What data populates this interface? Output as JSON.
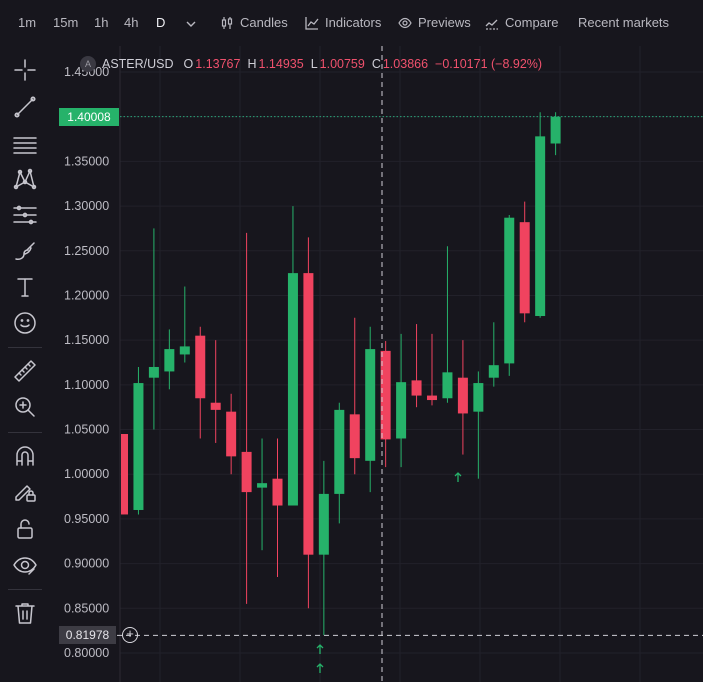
{
  "toolbar": {
    "timeframes": [
      "1m",
      "15m",
      "1h",
      "4h",
      "D"
    ],
    "active_timeframe": "D",
    "candles_label": "Candles",
    "indicators_label": "Indicators",
    "previews_label": "Previews",
    "compare_label": "Compare",
    "recent_markets_label": "Recent markets"
  },
  "drawing_tools": [
    "crosshair-icon",
    "trend-line-icon",
    "horizontal-lines-icon",
    "pattern-icon",
    "fib-levels-icon",
    "brush-icon",
    "text-icon",
    "emoji-icon",
    "ruler-icon",
    "zoom-in-icon",
    "magnet-icon",
    "lock-drawings-icon",
    "unlock-icon",
    "eye-icon",
    "trash-icon"
  ],
  "legend": {
    "symbol_icon_text": "A",
    "symbol": "ASTER/USD",
    "open_key": "O",
    "open": "1.13767",
    "high_key": "H",
    "high": "1.14935",
    "low_key": "L",
    "low": "1.00759",
    "close_key": "C",
    "close": "1.03866",
    "change": "−0.10171 (−8.92%)"
  },
  "last_price": "1.40008",
  "cursor_price": "0.81978",
  "colors": {
    "up": "#26b26a",
    "down": "#f0435f",
    "last_price_line": "#2aa37a",
    "grid": "#22212a",
    "axis_text": "#bdbcc4",
    "background": "#17161d"
  },
  "chart_data": {
    "type": "candlestick",
    "symbol": "ASTER/USD",
    "ylim": [
      0.78,
      1.47
    ],
    "y_ticks": [
      "1.45000",
      "1.40000",
      "1.35000",
      "1.30000",
      "1.25000",
      "1.20000",
      "1.15000",
      "1.10000",
      "1.05000",
      "1.00000",
      "0.95000",
      "0.90000",
      "0.85000",
      "0.80000"
    ],
    "candles": [
      {
        "o": 1.045,
        "h": 1.045,
        "l": 0.955,
        "c": 0.955
      },
      {
        "o": 0.96,
        "h": 1.12,
        "l": 0.955,
        "c": 1.102
      },
      {
        "o": 1.108,
        "h": 1.275,
        "l": 1.05,
        "c": 1.12
      },
      {
        "o": 1.115,
        "h": 1.162,
        "l": 1.095,
        "c": 1.14
      },
      {
        "o": 1.134,
        "h": 1.21,
        "l": 1.125,
        "c": 1.143
      },
      {
        "o": 1.155,
        "h": 1.165,
        "l": 1.04,
        "c": 1.085
      },
      {
        "o": 1.08,
        "h": 1.15,
        "l": 1.035,
        "c": 1.072
      },
      {
        "o": 1.07,
        "h": 1.09,
        "l": 1.0,
        "c": 1.02
      },
      {
        "o": 1.025,
        "h": 1.27,
        "l": 0.855,
        "c": 0.98
      },
      {
        "o": 0.985,
        "h": 1.04,
        "l": 0.915,
        "c": 0.99
      },
      {
        "o": 0.995,
        "h": 1.04,
        "l": 0.885,
        "c": 0.965
      },
      {
        "o": 0.965,
        "h": 1.3,
        "l": 0.965,
        "c": 1.225
      },
      {
        "o": 1.225,
        "h": 1.265,
        "l": 0.85,
        "c": 0.91
      },
      {
        "o": 0.91,
        "h": 1.015,
        "l": 0.82,
        "c": 0.978
      },
      {
        "o": 0.978,
        "h": 1.08,
        "l": 0.945,
        "c": 1.072
      },
      {
        "o": 1.067,
        "h": 1.175,
        "l": 1.0,
        "c": 1.018
      },
      {
        "o": 1.015,
        "h": 1.165,
        "l": 0.98,
        "c": 1.14
      },
      {
        "o": 1.138,
        "h": 1.149,
        "l": 1.008,
        "c": 1.039
      },
      {
        "o": 1.04,
        "h": 1.157,
        "l": 1.008,
        "c": 1.103
      },
      {
        "o": 1.105,
        "h": 1.168,
        "l": 1.075,
        "c": 1.088
      },
      {
        "o": 1.088,
        "h": 1.157,
        "l": 1.077,
        "c": 1.083
      },
      {
        "o": 1.085,
        "h": 1.255,
        "l": 1.08,
        "c": 1.114
      },
      {
        "o": 1.108,
        "h": 1.15,
        "l": 1.022,
        "c": 1.068
      },
      {
        "o": 1.07,
        "h": 1.115,
        "l": 0.995,
        "c": 1.102
      },
      {
        "o": 1.108,
        "h": 1.17,
        "l": 1.098,
        "c": 1.122
      },
      {
        "o": 1.124,
        "h": 1.29,
        "l": 1.11,
        "c": 1.287
      },
      {
        "o": 1.282,
        "h": 1.305,
        "l": 1.17,
        "c": 1.18
      },
      {
        "o": 1.177,
        "h": 1.405,
        "l": 1.175,
        "c": 1.378
      },
      {
        "o": 1.37,
        "h": 1.405,
        "l": 1.357,
        "c": 1.4
      }
    ]
  }
}
